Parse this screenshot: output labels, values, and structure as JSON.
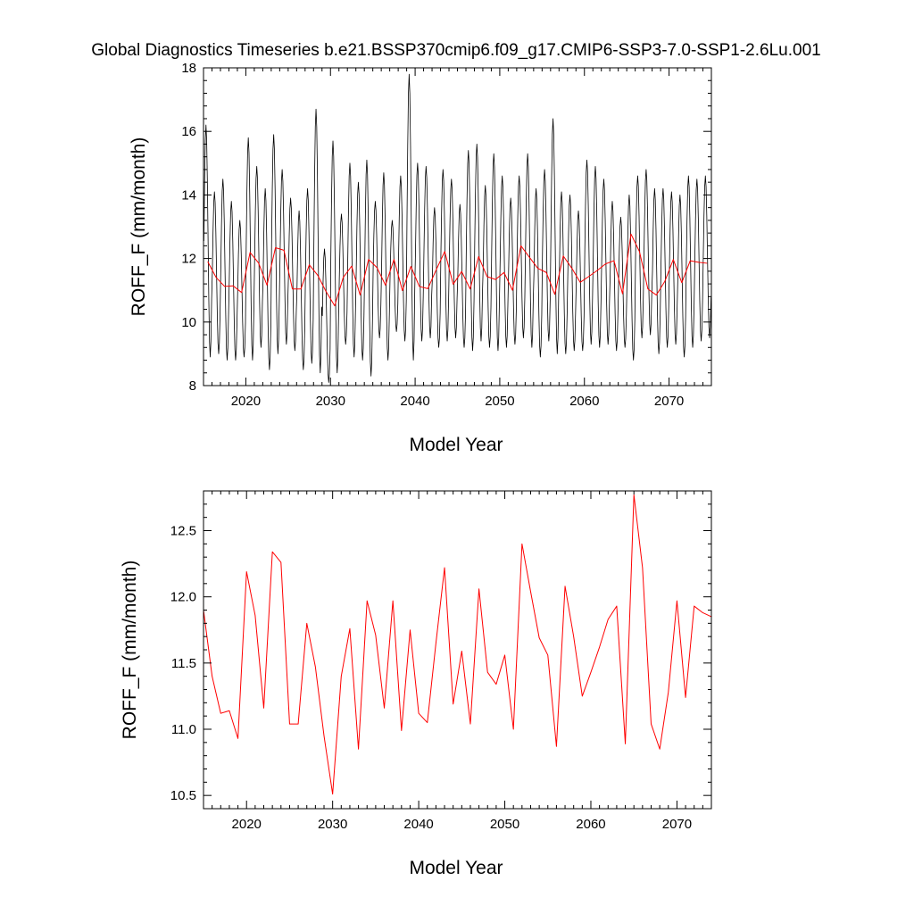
{
  "title": "Global Diagnostics Timeseries b.e21.BSSP370cmip6.f09_g17.CMIP6-SSP3-7.0-SSP1-2.6Lu.001",
  "colors": {
    "monthly": "#000000",
    "annual": "#ff0000",
    "axes": "#000000",
    "background": "#ffffff"
  },
  "chart_data": [
    {
      "type": "line",
      "panel": "top",
      "xlabel": "Model Year",
      "ylabel": "ROFF_F (mm/month)",
      "xlim": [
        2015,
        2075
      ],
      "ylim": [
        8,
        18
      ],
      "x_ticks": [
        2020,
        2030,
        2040,
        2050,
        2060,
        2070
      ],
      "x_tick_labels": [
        "2020",
        "2030",
        "2040",
        "2050",
        "2060",
        "2070"
      ],
      "y_ticks": [
        8,
        10,
        12,
        14,
        16,
        18
      ],
      "y_tick_labels": [
        "8",
        "10",
        "12",
        "14",
        "16",
        "18"
      ],
      "series": [
        {
          "name": "monthly",
          "color": "#000000",
          "maxima": [
            16.2,
            14.1,
            14.5,
            13.8,
            13.2,
            15.8,
            14.9,
            14.2,
            15.9,
            14.8,
            13.9,
            13.5,
            14.2,
            16.7,
            12.3,
            15.7,
            13.4,
            15.0,
            14.4,
            15.1,
            13.8,
            14.7,
            13.2,
            14.6,
            17.8,
            15.0,
            14.9,
            13.6,
            14.8,
            14.5,
            13.7,
            15.4,
            15.6,
            14.3,
            15.3,
            14.6,
            13.9,
            14.6,
            15.3,
            14.2,
            14.8,
            16.4,
            14.1,
            14.0,
            13.5,
            15.1,
            14.9,
            14.5,
            13.8,
            13.3,
            14.0,
            14.6,
            14.8,
            14.2,
            14.2,
            14.1,
            14.0,
            14.6,
            14.5,
            14.6
          ],
          "minima": [
            8.9,
            9.0,
            8.8,
            8.8,
            8.9,
            8.8,
            9.2,
            8.5,
            9.0,
            9.3,
            9.1,
            8.5,
            8.7,
            8.4,
            8.1,
            8.4,
            9.3,
            8.9,
            8.8,
            8.3,
            9.5,
            8.8,
            9.7,
            9.4,
            8.8,
            9.4,
            9.5,
            9.2,
            9.4,
            9.5,
            9.2,
            9.1,
            9.4,
            9.2,
            9.1,
            9.2,
            9.3,
            9.5,
            9.2,
            8.9,
            9.4,
            9.0,
            9.0,
            9.1,
            9.1,
            9.3,
            9.2,
            9.3,
            9.1,
            9.2,
            8.8,
            9.5,
            9.6,
            9.0,
            9.2,
            9.3,
            8.9,
            9.2,
            9.4,
            9.5
          ]
        },
        {
          "name": "annual mean",
          "color": "#ff0000",
          "x": [
            2015.5,
            2016.5,
            2017.5,
            2018.5,
            2019.5,
            2020.5,
            2021.5,
            2022.5,
            2023.5,
            2024.5,
            2025.5,
            2026.5,
            2027.5,
            2028.5,
            2029.5,
            2030.5,
            2031.5,
            2032.5,
            2033.5,
            2034.5,
            2035.5,
            2036.5,
            2037.5,
            2038.5,
            2039.5,
            2040.5,
            2041.5,
            2042.5,
            2043.5,
            2044.5,
            2045.5,
            2046.5,
            2047.5,
            2048.5,
            2049.5,
            2050.5,
            2051.5,
            2052.5,
            2053.5,
            2054.5,
            2055.5,
            2056.5,
            2057.5,
            2058.5,
            2059.5,
            2060.5,
            2061.5,
            2062.5,
            2063.5,
            2064.5,
            2065.5,
            2066.5,
            2067.5,
            2068.5,
            2069.5,
            2070.5,
            2071.5,
            2072.5,
            2073.5,
            2074.5
          ],
          "values": [
            11.9,
            11.4,
            11.12,
            11.14,
            10.93,
            12.19,
            11.86,
            11.16,
            12.34,
            12.26,
            11.04,
            11.04,
            11.8,
            11.47,
            10.95,
            10.51,
            11.4,
            11.76,
            10.85,
            11.97,
            11.71,
            11.16,
            11.97,
            10.99,
            11.75,
            11.12,
            11.05,
            11.65,
            12.22,
            11.19,
            11.59,
            11.04,
            12.06,
            11.43,
            11.34,
            11.56,
            11.0,
            12.4,
            12.04,
            11.69,
            11.56,
            10.87,
            12.08,
            11.7,
            11.25,
            11.43,
            11.62,
            11.83,
            11.93,
            10.89,
            12.77,
            12.22,
            11.04,
            10.85,
            11.28,
            11.97,
            11.24,
            11.93,
            11.88,
            11.85
          ]
        }
      ]
    },
    {
      "type": "line",
      "panel": "bottom",
      "xlabel": "Model Year",
      "ylabel": "ROFF_F (mm/month)",
      "xlim": [
        2015,
        2074
      ],
      "ylim": [
        10.4,
        12.8
      ],
      "x_ticks": [
        2020,
        2030,
        2040,
        2050,
        2060,
        2070
      ],
      "x_tick_labels": [
        "2020",
        "2030",
        "2040",
        "2050",
        "2060",
        "2070"
      ],
      "y_ticks": [
        10.5,
        11.0,
        11.5,
        12.0,
        12.5
      ],
      "y_tick_labels": [
        "10.5",
        "11.0",
        "11.5",
        "12.0",
        "12.5"
      ],
      "series": [
        {
          "name": "annual mean",
          "color": "#ff0000",
          "x": [
            2015,
            2016,
            2017,
            2018,
            2019,
            2020,
            2021,
            2022,
            2023,
            2024,
            2025,
            2026,
            2027,
            2028,
            2029,
            2030,
            2031,
            2032,
            2033,
            2034,
            2035,
            2036,
            2037,
            2038,
            2039,
            2040,
            2041,
            2042,
            2043,
            2044,
            2045,
            2046,
            2047,
            2048,
            2049,
            2050,
            2051,
            2052,
            2053,
            2054,
            2055,
            2056,
            2057,
            2058,
            2059,
            2060,
            2061,
            2062,
            2063,
            2064,
            2065,
            2066,
            2067,
            2068,
            2069,
            2070,
            2071,
            2072,
            2073,
            2074
          ],
          "values": [
            11.9,
            11.4,
            11.12,
            11.14,
            10.93,
            12.19,
            11.86,
            11.16,
            12.34,
            12.26,
            11.04,
            11.04,
            11.8,
            11.47,
            10.95,
            10.51,
            11.4,
            11.76,
            10.85,
            11.97,
            11.71,
            11.16,
            11.97,
            10.99,
            11.75,
            11.12,
            11.05,
            11.65,
            12.22,
            11.19,
            11.59,
            11.04,
            12.06,
            11.43,
            11.34,
            11.56,
            11.0,
            12.4,
            12.04,
            11.69,
            11.56,
            10.87,
            12.08,
            11.7,
            11.25,
            11.43,
            11.62,
            11.83,
            11.93,
            10.89,
            12.77,
            12.22,
            11.04,
            10.85,
            11.28,
            11.97,
            11.24,
            11.93,
            11.88,
            11.85
          ]
        }
      ]
    }
  ]
}
